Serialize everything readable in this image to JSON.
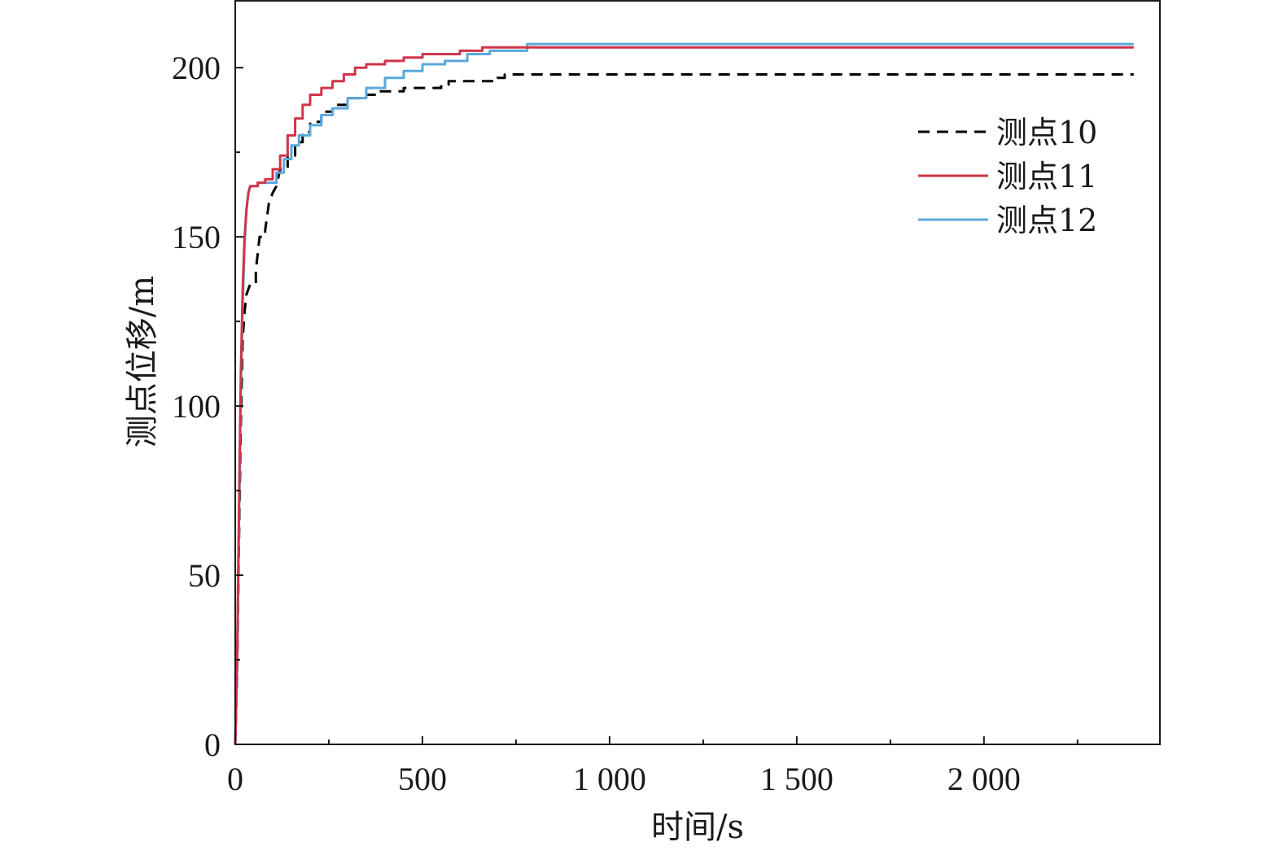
{
  "chart_data": {
    "type": "line",
    "title": "",
    "xlabel": "时间/s",
    "ylabel": "测点位移/m",
    "xlim": [
      0,
      2470
    ],
    "ylim": [
      0,
      220
    ],
    "x_ticks": [
      0,
      500,
      1000,
      1500,
      2000
    ],
    "x_tick_labels": [
      "0",
      "500",
      "1 000",
      "1 500",
      "2 000"
    ],
    "y_ticks": [
      0,
      50,
      100,
      150,
      200
    ],
    "y_tick_labels": [
      "0",
      "50",
      "100",
      "150",
      "200"
    ],
    "grid": false,
    "legend_position": "top-right",
    "series": [
      {
        "name": "测点10",
        "color": "#000000",
        "dash": "dashed",
        "points": [
          [
            0,
            0
          ],
          [
            5,
            20
          ],
          [
            10,
            60
          ],
          [
            15,
            95
          ],
          [
            20,
            120
          ],
          [
            25,
            128
          ],
          [
            30,
            133
          ],
          [
            40,
            136
          ],
          [
            55,
            140
          ],
          [
            65,
            150
          ],
          [
            80,
            152
          ],
          [
            90,
            160
          ],
          [
            100,
            163
          ],
          [
            110,
            165
          ],
          [
            120,
            170
          ],
          [
            140,
            174
          ],
          [
            160,
            178
          ],
          [
            180,
            181
          ],
          [
            200,
            184
          ],
          [
            230,
            187
          ],
          [
            260,
            189
          ],
          [
            300,
            191
          ],
          [
            350,
            192
          ],
          [
            380,
            193
          ],
          [
            450,
            194
          ],
          [
            550,
            195
          ],
          [
            570,
            196
          ],
          [
            700,
            197
          ],
          [
            720,
            198
          ],
          [
            2400,
            198
          ]
        ]
      },
      {
        "name": "测点11",
        "color": "#d0344a",
        "dash": "solid",
        "points": [
          [
            0,
            0
          ],
          [
            5,
            25
          ],
          [
            10,
            70
          ],
          [
            15,
            110
          ],
          [
            20,
            135
          ],
          [
            25,
            150
          ],
          [
            30,
            158
          ],
          [
            35,
            163
          ],
          [
            40,
            165
          ],
          [
            60,
            166
          ],
          [
            80,
            167
          ],
          [
            100,
            170
          ],
          [
            120,
            174
          ],
          [
            140,
            180
          ],
          [
            160,
            185
          ],
          [
            180,
            189
          ],
          [
            200,
            192
          ],
          [
            230,
            194
          ],
          [
            260,
            196
          ],
          [
            290,
            198
          ],
          [
            320,
            200
          ],
          [
            350,
            201
          ],
          [
            400,
            202
          ],
          [
            450,
            203
          ],
          [
            500,
            204
          ],
          [
            600,
            205
          ],
          [
            660,
            206
          ],
          [
            2400,
            206
          ]
        ]
      },
      {
        "name": "测点12",
        "color": "#5aa8db",
        "dash": "solid",
        "points": [
          [
            0,
            0
          ],
          [
            5,
            22
          ],
          [
            10,
            65
          ],
          [
            15,
            105
          ],
          [
            20,
            130
          ],
          [
            25,
            148
          ],
          [
            30,
            158
          ],
          [
            35,
            163
          ],
          [
            40,
            165
          ],
          [
            60,
            166
          ],
          [
            90,
            166
          ],
          [
            110,
            169
          ],
          [
            130,
            173
          ],
          [
            150,
            177
          ],
          [
            170,
            180
          ],
          [
            200,
            183
          ],
          [
            230,
            186
          ],
          [
            260,
            188
          ],
          [
            300,
            191
          ],
          [
            350,
            194
          ],
          [
            400,
            197
          ],
          [
            450,
            199
          ],
          [
            500,
            201
          ],
          [
            560,
            202
          ],
          [
            620,
            204
          ],
          [
            680,
            205
          ],
          [
            780,
            207
          ],
          [
            2400,
            207
          ]
        ]
      }
    ]
  }
}
